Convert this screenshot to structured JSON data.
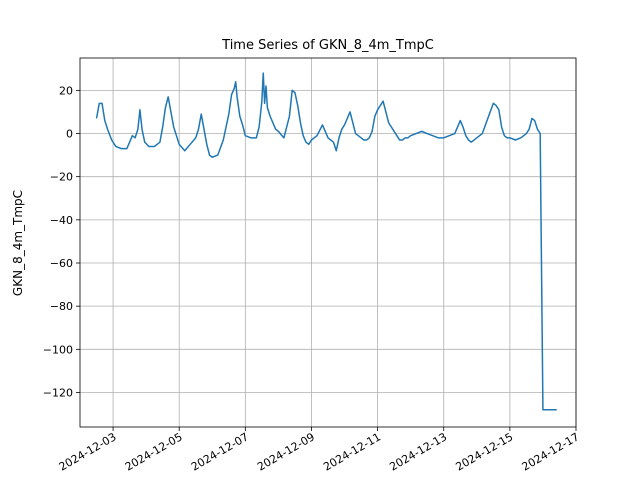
{
  "chart_data": {
    "type": "line",
    "title": "Time Series of GKN_8_4m_TmpC",
    "xlabel": "",
    "ylabel": "GKN_8_4m_TmpC",
    "grid": true,
    "line_color": "#1f77b4",
    "xlim": [
      "2024-12-02T00:00",
      "2024-12-17T00:00"
    ],
    "ylim": [
      -136,
      35
    ],
    "x_ticks": [
      "2024-12-03",
      "2024-12-05",
      "2024-12-07",
      "2024-12-09",
      "2024-12-11",
      "2024-12-13",
      "2024-12-15",
      "2024-12-17"
    ],
    "y_ticks": [
      20,
      0,
      -20,
      -40,
      -60,
      -80,
      -100,
      -120
    ],
    "series": [
      {
        "x": [
          "2024-12-02T12:00",
          "2024-12-02T14:00",
          "2024-12-02T16:00",
          "2024-12-02T18:00",
          "2024-12-02T20:00",
          "2024-12-02T23:00",
          "2024-12-03T02:00",
          "2024-12-03T06:00",
          "2024-12-03T10:00",
          "2024-12-03T12:00",
          "2024-12-03T14:00",
          "2024-12-03T16:00",
          "2024-12-03T18:00",
          "2024-12-03T19:30",
          "2024-12-03T21:00",
          "2024-12-03T23:00",
          "2024-12-04T02:00",
          "2024-12-04T06:00",
          "2024-12-04T10:00",
          "2024-12-04T12:00",
          "2024-12-04T14:00",
          "2024-12-04T16:00",
          "2024-12-04T18:00",
          "2024-12-04T20:00",
          "2024-12-04T22:00",
          "2024-12-05T00:00",
          "2024-12-05T04:00",
          "2024-12-05T08:00",
          "2024-12-05T12:00",
          "2024-12-05T14:00",
          "2024-12-05T16:00",
          "2024-12-05T18:00",
          "2024-12-05T20:00",
          "2024-12-05T22:00",
          "2024-12-06T00:00",
          "2024-12-06T04:00",
          "2024-12-06T08:00",
          "2024-12-06T12:00",
          "2024-12-06T14:00",
          "2024-12-06T16:00",
          "2024-12-06T17:00",
          "2024-12-06T18:00",
          "2024-12-06T20:00",
          "2024-12-06T22:00",
          "2024-12-07T00:00",
          "2024-12-07T04:00",
          "2024-12-07T08:00",
          "2024-12-07T10:00",
          "2024-12-07T12:00",
          "2024-12-07T13:00",
          "2024-12-07T14:00",
          "2024-12-07T15:00",
          "2024-12-07T16:00",
          "2024-12-07T18:00",
          "2024-12-07T20:00",
          "2024-12-07T22:00",
          "2024-12-08T00:00",
          "2024-12-08T04:00",
          "2024-12-08T08:00",
          "2024-12-08T10:00",
          "2024-12-08T12:00",
          "2024-12-08T14:00",
          "2024-12-08T16:00",
          "2024-12-08T18:00",
          "2024-12-08T20:00",
          "2024-12-08T22:00",
          "2024-12-09T00:00",
          "2024-12-09T04:00",
          "2024-12-09T08:00",
          "2024-12-09T12:00",
          "2024-12-09T14:00",
          "2024-12-09T16:00",
          "2024-12-09T18:00",
          "2024-12-09T20:00",
          "2024-12-09T22:00",
          "2024-12-10T00:00",
          "2024-12-10T04:00",
          "2024-12-10T08:00",
          "2024-12-10T12:00",
          "2024-12-10T14:00",
          "2024-12-10T16:00",
          "2024-12-10T18:00",
          "2024-12-10T20:00",
          "2024-12-10T22:00",
          "2024-12-11T00:00",
          "2024-12-11T04:00",
          "2024-12-11T08:00",
          "2024-12-11T12:00",
          "2024-12-11T14:00",
          "2024-12-11T15:00",
          "2024-12-11T16:00",
          "2024-12-11T18:00",
          "2024-12-11T20:00",
          "2024-12-11T22:00",
          "2024-12-12T00:00",
          "2024-12-12T04:00",
          "2024-12-12T08:00",
          "2024-12-12T12:00",
          "2024-12-12T16:00",
          "2024-12-12T20:00",
          "2024-12-13T00:00",
          "2024-12-13T04:00",
          "2024-12-13T08:00",
          "2024-12-13T12:00",
          "2024-12-13T14:00",
          "2024-12-13T16:00",
          "2024-12-13T18:00",
          "2024-12-13T20:00",
          "2024-12-14T00:00",
          "2024-12-14T04:00",
          "2024-12-14T08:00",
          "2024-12-14T12:00",
          "2024-12-14T14:00",
          "2024-12-14T16:00",
          "2024-12-14T18:00",
          "2024-12-14T20:00",
          "2024-12-14T22:00",
          "2024-12-15T00:00",
          "2024-12-15T04:00",
          "2024-12-15T08:00",
          "2024-12-15T12:00",
          "2024-12-15T14:00",
          "2024-12-15T16:00",
          "2024-12-15T18:00",
          "2024-12-15T20:00",
          "2024-12-15T22:00",
          "2024-12-16T00:00",
          "2024-12-16T00:30",
          "2024-12-16T03:00",
          "2024-12-16T10:00"
        ],
        "y": [
          7,
          14,
          14,
          6,
          2,
          -3,
          -6,
          -7,
          -7,
          -4,
          -1,
          -2,
          2,
          11,
          2,
          -4,
          -6,
          -6,
          -4,
          3,
          12,
          17,
          10,
          3,
          -1,
          -5,
          -8,
          -5,
          -2,
          2,
          9,
          2,
          -5,
          -10,
          -11,
          -10,
          -3,
          9,
          18,
          21,
          24,
          17,
          8,
          4,
          -1,
          -2,
          -2,
          3,
          15,
          28,
          14,
          22,
          12,
          8,
          5,
          2,
          1,
          -2,
          8,
          20,
          19,
          13,
          5,
          -1,
          -4,
          -5,
          -3,
          -1,
          4,
          -2,
          -3,
          -4,
          -8,
          -2,
          2,
          4,
          10,
          0,
          -2,
          -3,
          -3,
          -2,
          1,
          8,
          11,
          15,
          5,
          1,
          -1,
          -2,
          -3,
          -3,
          -2,
          -2,
          -1,
          0,
          1,
          0,
          -1,
          -2,
          -2,
          -1,
          0,
          6,
          3,
          -1,
          -3,
          -4,
          -2,
          0,
          7,
          14,
          13,
          11,
          3,
          -1,
          -2,
          -2,
          -3,
          -2,
          0,
          2,
          7,
          6,
          2,
          0,
          -128,
          -128,
          -128,
          -128
        ]
      }
    ]
  }
}
